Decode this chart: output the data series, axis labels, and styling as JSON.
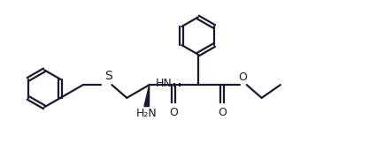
{
  "bg_color": "#ffffff",
  "line_color": "#1a1a2e",
  "bond_lw": 1.6,
  "font_size": 9,
  "fig_width": 4.26,
  "fig_height": 1.88,
  "dpi": 100,
  "xlim": [
    0,
    10
  ],
  "ylim": [
    0,
    4.4
  ]
}
